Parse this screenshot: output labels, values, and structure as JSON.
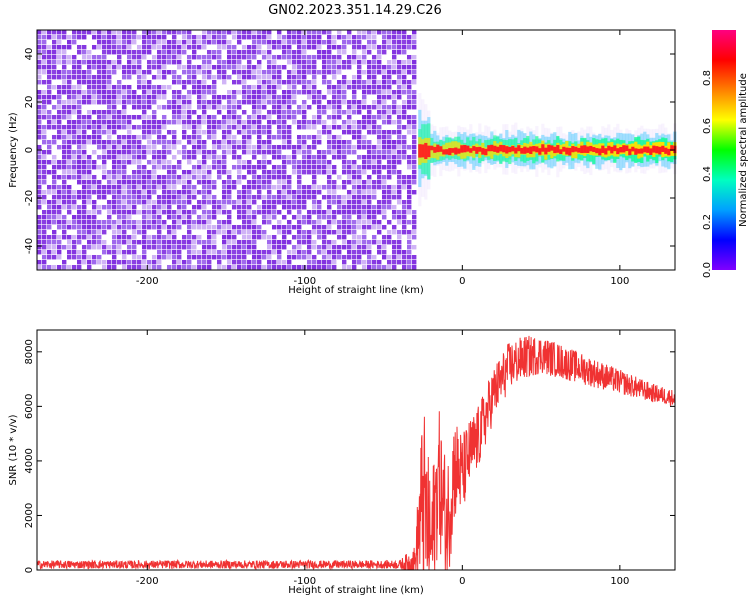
{
  "title": "GN02.2023.351.14.29.C26",
  "colorbar": {
    "label": "Normalized spectral amplitude",
    "ticks": [
      "0.0",
      "0.2",
      "0.4",
      "0.6",
      "0.8"
    ],
    "tick_values": [
      0.0,
      0.2,
      0.4,
      0.6,
      0.8
    ],
    "range": [
      0.0,
      1.0
    ],
    "colormap": [
      "#8000ff",
      "#0000ff",
      "#00a0ff",
      "#00ffc0",
      "#00ff00",
      "#ffff00",
      "#ff8000",
      "#ff0000",
      "#ff0080"
    ]
  },
  "chart_data": [
    {
      "type": "heatmap",
      "xlabel": "Height of straight line (km)",
      "ylabel": "Frequency (Hz)",
      "xlim": [
        -270,
        135
      ],
      "ylim": [
        -50,
        50
      ],
      "xticks": [
        -200,
        -100,
        0,
        100
      ],
      "xtick_labels": [
        "-200",
        "-100",
        "0",
        "100"
      ],
      "yticks": [
        -40,
        -20,
        0,
        20,
        40
      ],
      "ytick_labels": [
        "-40",
        "-20",
        "0",
        "20",
        "40"
      ],
      "noise_region": {
        "x_range": [
          -270,
          -30
        ],
        "y_range": [
          -50,
          50
        ],
        "amplitude_range": [
          0.0,
          0.1
        ]
      },
      "signal_band": {
        "x_range": [
          -28,
          135
        ],
        "center_frequency": 0,
        "half_width": 3,
        "peak_amplitude": 1.0
      },
      "signal_onset_km": -28,
      "colorscale": "normalized spectral amplitude"
    },
    {
      "type": "line",
      "xlabel": "Height of straight line (km)",
      "ylabel": "SNR (10 * v/v)",
      "xlim": [
        -270,
        135
      ],
      "ylim": [
        0,
        8800
      ],
      "xticks": [
        -200,
        -100,
        0,
        100
      ],
      "xtick_labels": [
        "-200",
        "-100",
        "0",
        "100"
      ],
      "yticks": [
        0,
        2000,
        4000,
        6000,
        8000
      ],
      "ytick_labels": [
        "0",
        "2000",
        "4000",
        "6000",
        "8000"
      ],
      "color": "#f03232",
      "series": [
        {
          "name": "",
          "x": [
            -270,
            -200,
            -100,
            -40,
            -30,
            -25,
            -20,
            -15,
            -10,
            -5,
            0,
            5,
            10,
            20,
            30,
            40,
            50,
            60,
            70,
            80,
            90,
            100,
            110,
            120,
            135
          ],
          "y": [
            200,
            200,
            200,
            200,
            300,
            2800,
            700,
            3500,
            1500,
            3800,
            3500,
            4300,
            4800,
            6500,
            7500,
            7800,
            7900,
            7700,
            7500,
            7300,
            7100,
            6900,
            6700,
            6500,
            6300
          ],
          "spread": [
            150,
            150,
            150,
            150,
            600,
            3500,
            2500,
            2500,
            2500,
            2000,
            1500,
            1300,
            1200,
            1000,
            900,
            800,
            700,
            650,
            600,
            550,
            500,
            450,
            400,
            350,
            300
          ]
        }
      ]
    }
  ]
}
